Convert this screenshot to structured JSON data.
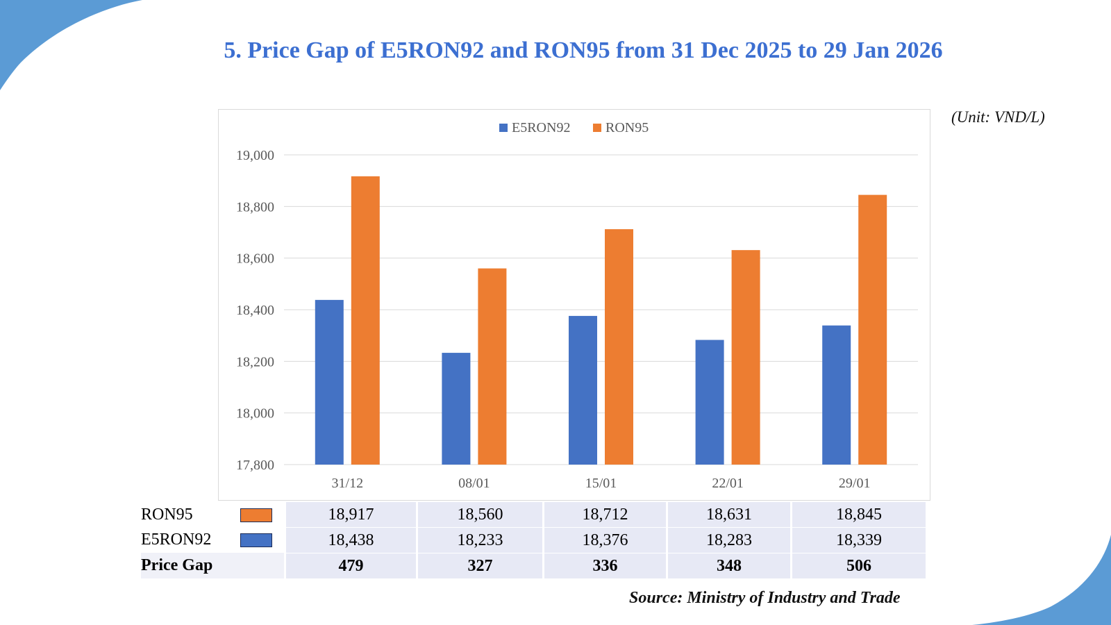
{
  "header": {
    "title": "5. Price Gap of E5RON92 and RON95 from 31 Dec 2025 to 29 Jan 2026",
    "unit": "(Unit: VND/L)"
  },
  "colors": {
    "e5ron92": "#4472c4",
    "ron95": "#ed7d31",
    "accent": "#5b9bd5",
    "title": "#3c6fd1"
  },
  "chart_data": {
    "type": "bar",
    "title": "5. Price Gap of E5RON92 and RON95 from 31 Dec 2025 to 29 Jan 2026",
    "categories": [
      "31/12",
      "08/01",
      "15/01",
      "22/01",
      "29/01"
    ],
    "series": [
      {
        "name": "E5RON92",
        "values": [
          18438,
          18233,
          18376,
          18283,
          18339
        ]
      },
      {
        "name": "RON95",
        "values": [
          18917,
          18560,
          18712,
          18631,
          18845
        ]
      }
    ],
    "ylim": [
      17800,
      19000
    ],
    "yticks": [
      17800,
      18000,
      18200,
      18400,
      18600,
      18800,
      19000
    ],
    "ytick_labels": [
      "17,800",
      "18,000",
      "18,200",
      "18,400",
      "18,600",
      "18,800",
      "19,000"
    ],
    "xlabel": "",
    "ylabel": "",
    "legend": "top-center",
    "grid": true
  },
  "table": {
    "rows": [
      {
        "label": "RON95",
        "swatch": "ron95",
        "values": [
          "18,917",
          "18,560",
          "18,712",
          "18,631",
          "18,845"
        ]
      },
      {
        "label": "E5RON92",
        "swatch": "e5ron92",
        "values": [
          "18,438",
          "18,233",
          "18,376",
          "18,283",
          "18,339"
        ]
      },
      {
        "label": "Price Gap",
        "values": [
          "479",
          "327",
          "336",
          "348",
          "506"
        ]
      }
    ]
  },
  "footer": {
    "source": "Source: Ministry of Industry and Trade"
  }
}
